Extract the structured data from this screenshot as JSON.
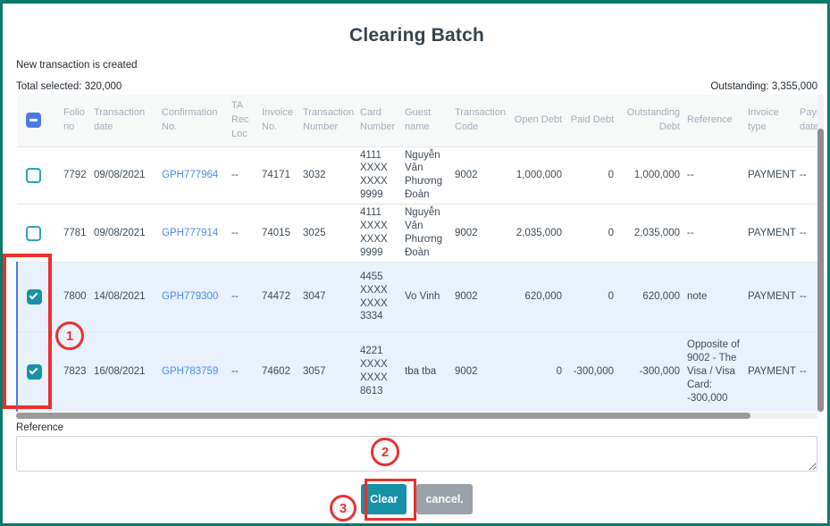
{
  "page": {
    "title": "Clearing Batch",
    "status_message": "New transaction is created",
    "total_selected": "Total selected: 320,000",
    "outstanding": "Outstanding: 3,355,000"
  },
  "colors": {
    "frame-teal": "#0b7a6b",
    "primary-teal": "#1791a5",
    "cancel-gray": "#9aa1a8",
    "annotation-red": "#e8312e",
    "selected-row": "#e9f1fc",
    "selected-border": "#4b7be5",
    "link-blue": "#4a8ee8",
    "checkbox-teal": "#1792a8",
    "header-checkbox-blue": "#4b7be5"
  },
  "table": {
    "select_all_state": "indeterminate",
    "headers": [
      "Folio no",
      "Transaction date",
      "Confirmation No.",
      "TA Rec Loc",
      "Invoice No.",
      "Transaction Number",
      "Card Number",
      "Guest name",
      "Transaction Code",
      "Open Debt",
      "Paid Debt",
      "Outstanding Debt",
      "Reference",
      "Invoice type",
      "Payment date"
    ],
    "rows": [
      {
        "selected": false,
        "folio": "7792",
        "date": "09/08/2021",
        "confirmation": "GPH777964",
        "ta_rec_loc": "--",
        "invoice_no": "74171",
        "transaction_number": "3032",
        "card_number": "4111 XXXX XXXX 9999",
        "guest_name": "Nguyễn Vân Phương Đoàn",
        "transaction_code": "9002",
        "open_debt": "1,000,000",
        "paid_debt": "0",
        "outstanding_debt": "1,000,000",
        "reference": "--",
        "invoice_type": "PAYMENT",
        "payment_date": "--"
      },
      {
        "selected": false,
        "folio": "7781",
        "date": "09/08/2021",
        "confirmation": "GPH777914",
        "ta_rec_loc": "--",
        "invoice_no": "74015",
        "transaction_number": "3025",
        "card_number": "4111 XXXX XXXX 9999",
        "guest_name": "Nguyễn Vân Phương Đoàn",
        "transaction_code": "9002",
        "open_debt": "2,035,000",
        "paid_debt": "0",
        "outstanding_debt": "2,035,000",
        "reference": "--",
        "invoice_type": "PAYMENT",
        "payment_date": "--"
      },
      {
        "selected": true,
        "folio": "7800",
        "date": "14/08/2021",
        "confirmation": "GPH779300",
        "ta_rec_loc": "--",
        "invoice_no": "74472",
        "transaction_number": "3047",
        "card_number": "4455 XXXX XXXX 3334",
        "guest_name": "Vo Vinh",
        "transaction_code": "9002",
        "open_debt": "620,000",
        "paid_debt": "0",
        "outstanding_debt": "620,000",
        "reference": "note",
        "invoice_type": "PAYMENT",
        "payment_date": "--"
      },
      {
        "selected": true,
        "folio": "7823",
        "date": "16/08/2021",
        "confirmation": "GPH783759",
        "ta_rec_loc": "--",
        "invoice_no": "74602",
        "transaction_number": "3057",
        "card_number": "4221 XXXX XXXX 8613",
        "guest_name": "tba tba",
        "transaction_code": "9002",
        "open_debt": "0",
        "paid_debt": "-300,000",
        "outstanding_debt": "-300,000",
        "reference": "Opposite of 9002 - The Visa / Visa Card: -300,000",
        "invoice_type": "PAYMENT",
        "payment_date": "--"
      }
    ]
  },
  "reference": {
    "label": "Reference",
    "value": ""
  },
  "actions": {
    "clear_label": "Clear",
    "cancel_label": "cancel."
  },
  "annotations": {
    "step1": "1",
    "step2": "2",
    "step3": "3"
  }
}
